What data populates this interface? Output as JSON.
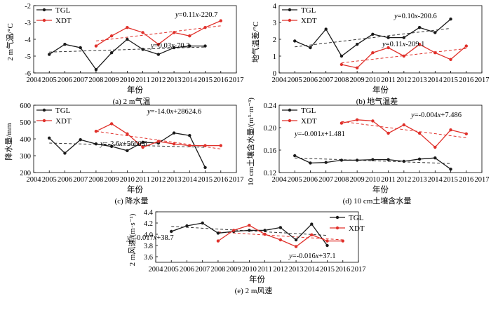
{
  "colors": {
    "tgl": "#1a1a1a",
    "xdt": "#e0302a",
    "trend_tgl": "#333333",
    "trend_xdt": "#e0302a"
  },
  "chart_data": [
    {
      "type": "line",
      "caption": "(a) 2 m气温",
      "xlabel": "年份",
      "ylabel": "2 m气温/°C",
      "xlim": [
        2004,
        2017
      ],
      "ylim": [
        -6,
        -2
      ],
      "yticks": [
        -6,
        -5,
        -4,
        -3,
        -2
      ],
      "ytick_labels": [
        "-6",
        "-5",
        "-4",
        "-3",
        "-2"
      ],
      "legend_position": "top-left",
      "series": [
        {
          "name": "TGL",
          "x": [
            2005,
            2006,
            2007,
            2008,
            2009,
            2010,
            2011,
            2012,
            2013,
            2014,
            2015
          ],
          "values": [
            -4.9,
            -4.3,
            -4.5,
            -5.8,
            -4.8,
            -4.0,
            -4.6,
            -4.9,
            -4.5,
            -4.4,
            -4.4
          ]
        },
        {
          "name": "XDT",
          "x": [
            2008,
            2009,
            2010,
            2011,
            2012,
            2013,
            2014,
            2015,
            2016
          ],
          "values": [
            -4.4,
            -3.8,
            -3.3,
            -3.6,
            -4.3,
            -3.6,
            -3.8,
            -3.3,
            -2.9
          ]
        }
      ],
      "trend_lines": [
        {
          "series": "TGL",
          "equation": "y=0.03x-70.3",
          "from": [
            2005,
            -4.76
          ],
          "to": [
            2015,
            -4.46
          ]
        },
        {
          "series": "XDT",
          "equation": "y=0.11x-220.7",
          "from": [
            2008,
            -4.1
          ],
          "to": [
            2016,
            -3.2
          ]
        }
      ]
    },
    {
      "type": "line",
      "caption": "(b) 地气温差",
      "xlabel": "年份",
      "ylabel": "地气温差/°C",
      "xlim": [
        2004,
        2017
      ],
      "ylim": [
        0,
        4
      ],
      "yticks": [
        0,
        1,
        2,
        3,
        4
      ],
      "ytick_labels": [
        "0",
        "1",
        "2",
        "3",
        "4"
      ],
      "legend_position": "top-left",
      "series": [
        {
          "name": "TGL",
          "x": [
            2005,
            2006,
            2007,
            2008,
            2009,
            2010,
            2011,
            2012,
            2013,
            2014,
            2015
          ],
          "values": [
            1.9,
            1.5,
            2.6,
            1.0,
            1.7,
            2.3,
            2.1,
            2.1,
            2.7,
            2.4,
            3.2
          ]
        },
        {
          "name": "XDT",
          "x": [
            2008,
            2009,
            2010,
            2011,
            2012,
            2013,
            2014,
            2015,
            2016
          ],
          "values": [
            0.5,
            0.3,
            1.2,
            1.5,
            1.0,
            1.7,
            1.2,
            0.8,
            1.6
          ]
        }
      ],
      "trend_lines": [
        {
          "series": "TGL",
          "equation": "y=0.11x-209.1",
          "from": [
            2005,
            1.55
          ],
          "to": [
            2015,
            2.65
          ]
        },
        {
          "series": "XDT",
          "equation": "y=0.10x-200.6",
          "from": [
            2008,
            0.6
          ],
          "to": [
            2016,
            1.45
          ]
        }
      ]
    },
    {
      "type": "line",
      "caption": "(c) 降水量",
      "xlabel": "年份",
      "ylabel": "降水量/mm",
      "xlim": [
        2004,
        2017
      ],
      "ylim": [
        200,
        600
      ],
      "yticks": [
        200,
        300,
        400,
        500,
        600
      ],
      "ytick_labels": [
        "200",
        "300",
        "400",
        "500",
        "600"
      ],
      "legend_position": "top-left",
      "series": [
        {
          "name": "TGL",
          "x": [
            2005,
            2006,
            2007,
            2008,
            2009,
            2010,
            2011,
            2012,
            2013,
            2014,
            2015
          ],
          "values": [
            405,
            315,
            395,
            370,
            355,
            330,
            380,
            375,
            435,
            420,
            230
          ]
        },
        {
          "name": "XDT",
          "x": [
            2008,
            2009,
            2010,
            2011,
            2012,
            2013,
            2014,
            2015,
            2016
          ],
          "values": [
            445,
            490,
            430,
            350,
            385,
            370,
            360,
            360,
            360
          ]
        }
      ],
      "trend_lines": [
        {
          "series": "TGL",
          "equation": "y=-2.6x+5660.6",
          "from": [
            2005,
            375
          ],
          "to": [
            2015,
            350
          ]
        },
        {
          "series": "XDT",
          "equation": "y=-14.0x+28624.6",
          "from": [
            2008,
            445
          ],
          "to": [
            2016,
            340
          ]
        }
      ]
    },
    {
      "type": "line",
      "caption": "(d) 10 cm土壤含水量",
      "xlabel": "年份",
      "ylabel": "10 cm土壤含水量/(m³·m⁻³)",
      "xlim": [
        2004,
        2017
      ],
      "ylim": [
        0.12,
        0.24
      ],
      "yticks": [
        0.12,
        0.16,
        0.2,
        0.24
      ],
      "ytick_labels": [
        "0.12",
        "0.16",
        "0.20",
        "0.24"
      ],
      "legend_position": "top-left",
      "series": [
        {
          "name": "TGL",
          "x": [
            2005,
            2006,
            2007,
            2008,
            2009,
            2010,
            2011,
            2012,
            2013,
            2014,
            2015
          ],
          "values": [
            0.15,
            0.137,
            0.138,
            0.142,
            0.142,
            0.143,
            0.143,
            0.14,
            0.144,
            0.146,
            0.126
          ]
        },
        {
          "name": "XDT",
          "x": [
            2008,
            2009,
            2010,
            2011,
            2012,
            2013,
            2014,
            2015,
            2016
          ],
          "values": [
            0.208,
            0.214,
            0.212,
            0.19,
            0.205,
            0.19,
            0.165,
            0.196,
            0.189
          ]
        }
      ],
      "trend_lines": [
        {
          "series": "TGL",
          "equation": "y=-0.001x+1.481",
          "from": [
            2005,
            0.146
          ],
          "to": [
            2015,
            0.136
          ]
        },
        {
          "series": "XDT",
          "equation": "y=-0.004x+7.486",
          "from": [
            2008,
            0.211
          ],
          "to": [
            2016,
            0.182
          ]
        }
      ]
    },
    {
      "type": "line",
      "caption": "(e) 2 m风速",
      "xlabel": "年份",
      "ylabel": "2 m风速/(m·s⁻¹)",
      "xlim": [
        2004,
        2017
      ],
      "ylim": [
        3.5,
        4.4
      ],
      "yticks": [
        3.6,
        3.8,
        4.0,
        4.2,
        4.4
      ],
      "ytick_labels": [
        "3.6",
        "3.8",
        "4.0",
        "4.2",
        "4.4"
      ],
      "legend_position": "top-right",
      "series": [
        {
          "name": "TGL",
          "x": [
            2005,
            2006,
            2007,
            2008,
            2009,
            2010,
            2011,
            2012,
            2013,
            2014,
            2015
          ],
          "values": [
            4.05,
            4.15,
            4.2,
            4.02,
            4.05,
            4.07,
            4.07,
            4.12,
            3.9,
            4.18,
            3.8
          ]
        },
        {
          "name": "XDT",
          "x": [
            2008,
            2009,
            2010,
            2011,
            2012,
            2013,
            2014,
            2015,
            2016
          ],
          "values": [
            3.88,
            4.07,
            4.16,
            4.0,
            3.9,
            3.78,
            3.99,
            3.88,
            3.88
          ]
        }
      ],
      "trend_lines": [
        {
          "series": "TGL",
          "equation": "y=-0.016x+37.1",
          "from": [
            2005,
            4.14
          ],
          "to": [
            2015,
            3.98
          ]
        },
        {
          "series": "XDT",
          "equation": "y=-0.017x+38.7",
          "from": [
            2008,
            4.04
          ],
          "to": [
            2016,
            3.9
          ]
        }
      ]
    }
  ]
}
